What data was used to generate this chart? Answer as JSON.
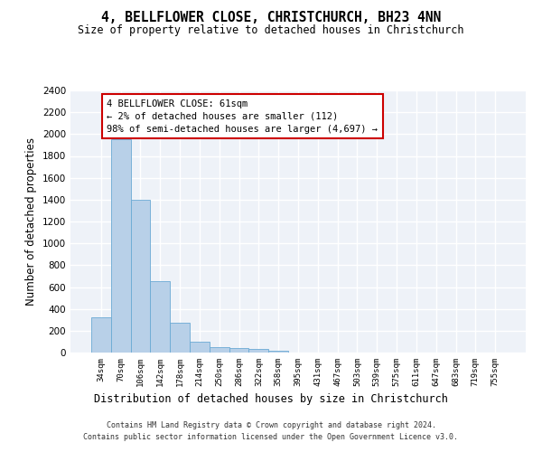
{
  "title": "4, BELLFLOWER CLOSE, CHRISTCHURCH, BH23 4NN",
  "subtitle": "Size of property relative to detached houses in Christchurch",
  "xlabel": "Distribution of detached houses by size in Christchurch",
  "ylabel": "Number of detached properties",
  "bar_color": "#b8d0e8",
  "bar_edge_color": "#6aaad4",
  "background_color": "#eef2f8",
  "grid_color": "#ffffff",
  "categories": [
    "34sqm",
    "70sqm",
    "106sqm",
    "142sqm",
    "178sqm",
    "214sqm",
    "250sqm",
    "286sqm",
    "322sqm",
    "358sqm",
    "395sqm",
    "431sqm",
    "467sqm",
    "503sqm",
    "539sqm",
    "575sqm",
    "611sqm",
    "647sqm",
    "683sqm",
    "719sqm",
    "755sqm"
  ],
  "values": [
    325,
    1950,
    1400,
    650,
    275,
    100,
    50,
    42,
    35,
    20,
    0,
    0,
    0,
    0,
    0,
    0,
    0,
    0,
    0,
    0,
    0
  ],
  "ylim": [
    0,
    2400
  ],
  "yticks": [
    0,
    200,
    400,
    600,
    800,
    1000,
    1200,
    1400,
    1600,
    1800,
    2000,
    2200,
    2400
  ],
  "annotation_text": "4 BELLFLOWER CLOSE: 61sqm\n← 2% of detached houses are smaller (112)\n98% of semi-detached houses are larger (4,697) →",
  "annotation_box_color": "#ffffff",
  "annotation_box_edge_color": "#cc0000",
  "footer_line1": "Contains HM Land Registry data © Crown copyright and database right 2024.",
  "footer_line2": "Contains public sector information licensed under the Open Government Licence v3.0."
}
